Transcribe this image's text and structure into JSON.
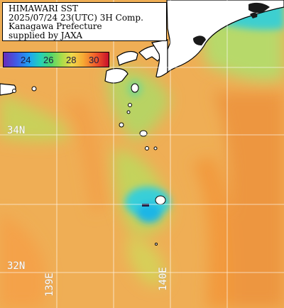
{
  "title": {
    "line1": "HIMAWARI SST",
    "line2": "2025/07/24 23(UTC) 3H Comp.",
    "line3": "Kanagawa Prefecture",
    "line4": "supplied by JAXA"
  },
  "legend": {
    "ticks": [
      "24",
      "26",
      "28",
      "30"
    ],
    "colors": {
      "low": "#3f5be6",
      "mid_low": "#24d0b8",
      "mid": "#efd84a",
      "high": "#c8102a"
    }
  },
  "grid": {
    "latitudes": [
      "34N",
      "32N"
    ],
    "longitudes": [
      "139E",
      "140E"
    ]
  },
  "colors": {
    "sea_warm": "#f0b35a",
    "sea_warmer": "#ef9e45",
    "sea_cool": "#cdd45a",
    "sea_cold": "#3ad0d8",
    "land": "#ffffff",
    "coast": "#000000",
    "grid_line": "#ffffff"
  }
}
